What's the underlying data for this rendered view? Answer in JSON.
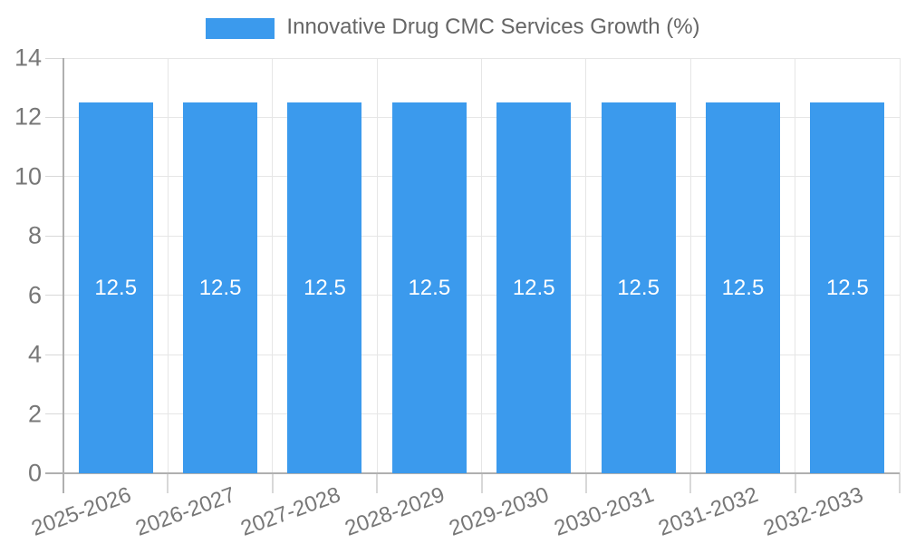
{
  "chart_data": {
    "type": "bar",
    "legend": "Innovative Drug CMC Services Growth (%)",
    "categories": [
      "2025-2026",
      "2026-2027",
      "2027-2028",
      "2028-2029",
      "2029-2030",
      "2030-2031",
      "2031-2032",
      "2032-2033"
    ],
    "values": [
      12.5,
      12.5,
      12.5,
      12.5,
      12.5,
      12.5,
      12.5,
      12.5
    ],
    "bar_value_labels": [
      "12.5",
      "12.5",
      "12.5",
      "12.5",
      "12.5",
      "12.5",
      "12.5",
      "12.5"
    ],
    "ylim": [
      0,
      14
    ],
    "yticks": [
      0,
      2,
      4,
      6,
      8,
      10,
      12,
      14
    ],
    "grid": true,
    "legend_position": "top",
    "colors": {
      "bar": "#3b9aed",
      "grid_line": "#e6e6e6",
      "axis_border": "#b0b0b0",
      "tick_text": "#777777",
      "legend_text": "#666666",
      "bar_label_text": "#ffffff",
      "background": "#ffffff"
    }
  }
}
